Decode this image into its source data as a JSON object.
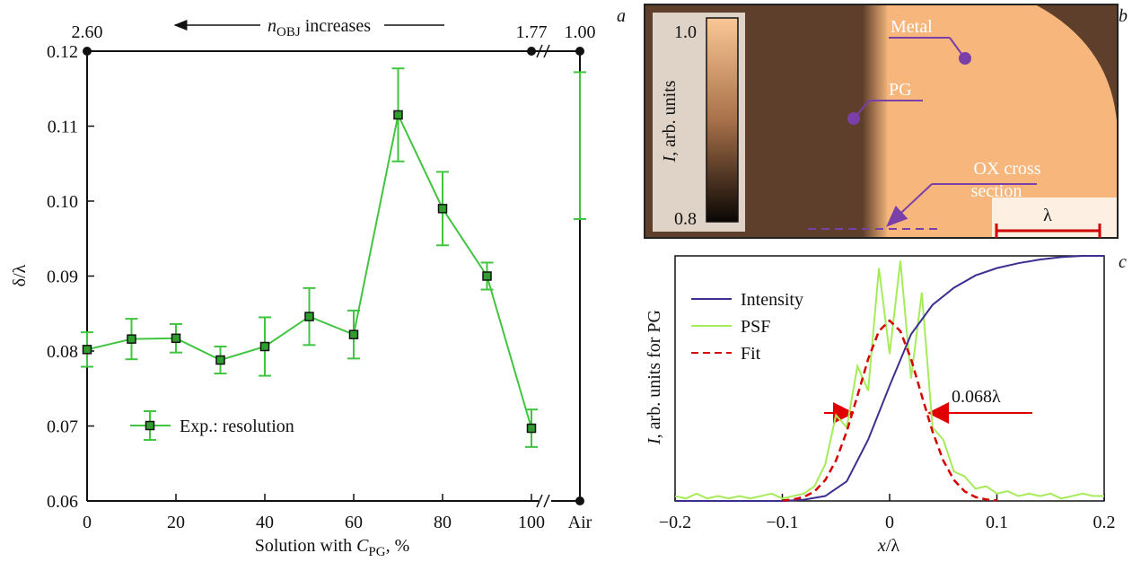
{
  "panel_labels": [
    "a",
    "b",
    "c"
  ],
  "chart_data": [
    {
      "type": "errorbar-line",
      "ylabel": "δ/λ",
      "xlabel_parts": [
        "Solution with ",
        "C",
        "PG",
        ", %"
      ],
      "top_axis_parts": [
        "n",
        "OBJ",
        " increases"
      ],
      "top_ticks": [
        {
          "value": 2.6,
          "label": "2.60"
        },
        {
          "value": 1.77,
          "label": "1.77"
        },
        {
          "value": 1.0,
          "label": "1.00"
        }
      ],
      "x": [
        0,
        10,
        20,
        30,
        40,
        50,
        60,
        70,
        80,
        90,
        100
      ],
      "xlim": [
        0,
        100
      ],
      "xticks": [
        0,
        20,
        40,
        60,
        80,
        100
      ],
      "ylim": [
        0.06,
        0.12
      ],
      "yticks": [
        0.06,
        0.07,
        0.08,
        0.09,
        {
          "value": 0.1,
          "label": "0.10"
        },
        0.11,
        0.12
      ],
      "series": [
        {
          "name": "Exp.: resolution",
          "color": "#41c541",
          "values": [
            0.0802,
            0.0816,
            0.0817,
            0.0788,
            0.0806,
            0.0846,
            0.0822,
            0.1115,
            0.099,
            0.09,
            0.0697
          ],
          "errors": [
            0.0023,
            0.0027,
            0.0019,
            0.0018,
            0.0039,
            0.0038,
            0.0032,
            0.0062,
            0.0049,
            0.0018,
            0.0025
          ]
        }
      ],
      "air_point": {
        "category": "Air",
        "value": 0.1074,
        "error": 0.0098
      }
    },
    {
      "type": "line",
      "ylabel_parts": [
        "I",
        ", arb. units for PG"
      ],
      "xlabel_parts": [
        "x",
        "/λ"
      ],
      "xlim": [
        -0.2,
        0.2
      ],
      "xticks": [
        {
          "value": -0.2,
          "label": "−0.2"
        },
        {
          "value": -0.1,
          "label": "−0.1"
        },
        0,
        0.1,
        0.2
      ],
      "ylim": [
        0,
        1
      ],
      "annotation": "0.068λ",
      "series": [
        {
          "name": "Intensity",
          "color": "#3b2f8f",
          "dashed": false,
          "x": [
            -0.2,
            -0.18,
            -0.16,
            -0.14,
            -0.12,
            -0.1,
            -0.08,
            -0.06,
            -0.04,
            -0.02,
            0,
            0.02,
            0.04,
            0.06,
            0.08,
            0.1,
            0.12,
            0.14,
            0.16,
            0.18,
            0.2
          ],
          "values": [
            0,
            0,
            0,
            0,
            0,
            0,
            0.005,
            0.02,
            0.08,
            0.25,
            0.47,
            0.68,
            0.8,
            0.87,
            0.92,
            0.95,
            0.97,
            0.985,
            0.995,
            1,
            1
          ]
        },
        {
          "name": "PSF",
          "color": "#a6ec5a",
          "dashed": false,
          "x": [
            -0.2,
            -0.19,
            -0.18,
            -0.17,
            -0.16,
            -0.15,
            -0.14,
            -0.13,
            -0.12,
            -0.11,
            -0.1,
            -0.09,
            -0.08,
            -0.07,
            -0.06,
            -0.05,
            -0.04,
            -0.03,
            -0.02,
            -0.01,
            0,
            0.01,
            0.02,
            0.03,
            0.04,
            0.05,
            0.06,
            0.07,
            0.08,
            0.09,
            0.1,
            0.11,
            0.12,
            0.13,
            0.14,
            0.15,
            0.16,
            0.17,
            0.18,
            0.19,
            0.2
          ],
          "values": [
            0.02,
            0.01,
            0.03,
            0.01,
            0.02,
            0.01,
            0.02,
            0.01,
            0.02,
            0.03,
            0.01,
            0.02,
            0.03,
            0.06,
            0.15,
            0.35,
            0.3,
            0.55,
            0.45,
            0.95,
            0.6,
            0.98,
            0.5,
            0.85,
            0.3,
            0.25,
            0.12,
            0.1,
            0.05,
            0.06,
            0.03,
            0.04,
            0.02,
            0.03,
            0.02,
            0.03,
            0.01,
            0.02,
            0.03,
            0.02,
            0.02
          ]
        },
        {
          "name": "Fit",
          "color": "#d40000",
          "dashed": true,
          "x": [
            -0.1,
            -0.09,
            -0.08,
            -0.07,
            -0.06,
            -0.05,
            -0.04,
            -0.03,
            -0.02,
            -0.01,
            0,
            0.01,
            0.02,
            0.03,
            0.04,
            0.05,
            0.06,
            0.07,
            0.08,
            0.09,
            0.1
          ],
          "values": [
            0.002,
            0.006,
            0.016,
            0.039,
            0.085,
            0.165,
            0.283,
            0.429,
            0.579,
            0.693,
            0.736,
            0.693,
            0.579,
            0.429,
            0.283,
            0.165,
            0.085,
            0.039,
            0.016,
            0.006,
            0.002
          ]
        }
      ]
    }
  ],
  "micrograph": {
    "colorbar_max": "1.0",
    "colorbar_min": "0.8",
    "colorbar_label_parts": [
      "I",
      ", arb. units"
    ],
    "labels": [
      "Metal",
      "PG",
      "OX cross",
      "section"
    ],
    "scale_bar": "λ"
  }
}
